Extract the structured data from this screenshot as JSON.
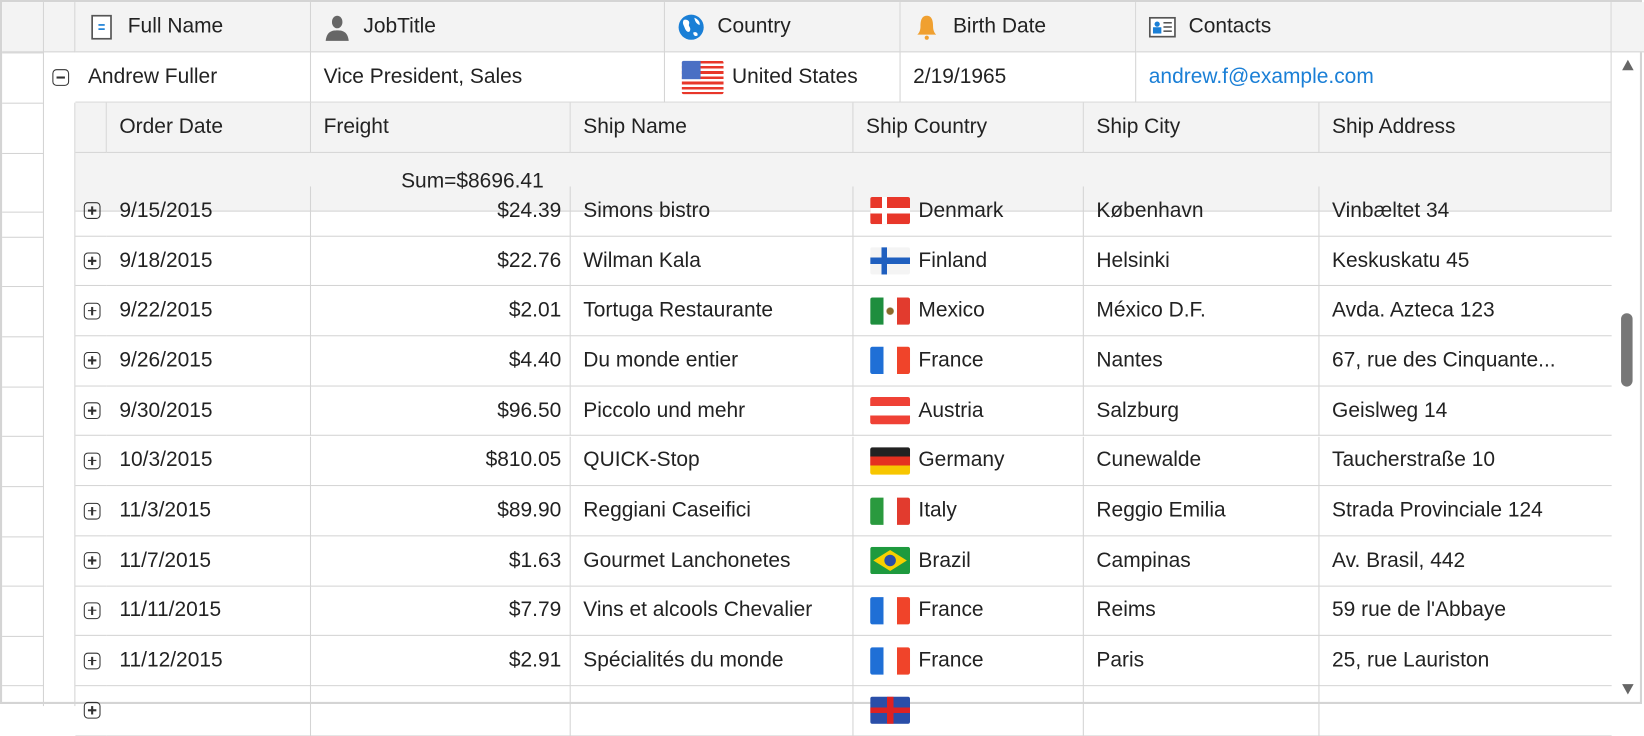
{
  "columns": [
    {
      "label": "Full Name",
      "icon": "full-name-icon"
    },
    {
      "label": "JobTitle",
      "icon": "person-icon"
    },
    {
      "label": "Country",
      "icon": "globe-icon"
    },
    {
      "label": "Birth Date",
      "icon": "bell-icon"
    },
    {
      "label": "Contacts",
      "icon": "contact-card-icon"
    }
  ],
  "master_row": {
    "full_name": "Andrew Fuller",
    "job_title": "Vice President, Sales",
    "country": "United States",
    "country_flag": "us",
    "birth_date": "2/19/1965",
    "contact": "andrew.f@example.com",
    "expanded": true
  },
  "detail": {
    "columns": [
      "Order Date",
      "Freight",
      "Ship Name",
      "Ship Country",
      "Ship City",
      "Ship Address"
    ],
    "summary": "Sum=$8696.41",
    "rows": [
      {
        "date": "9/15/2015",
        "freight": "$24.39",
        "ship_name": "Simons bistro",
        "country": "Denmark",
        "flag": "dk",
        "city": "København",
        "address": "Vinbæltet 34"
      },
      {
        "date": "9/18/2015",
        "freight": "$22.76",
        "ship_name": "Wilman Kala",
        "country": "Finland",
        "flag": "fi",
        "city": "Helsinki",
        "address": "Keskuskatu 45"
      },
      {
        "date": "9/22/2015",
        "freight": "$2.01",
        "ship_name": "Tortuga Restaurante",
        "country": "Mexico",
        "flag": "mx",
        "city": "México D.F.",
        "address": "Avda. Azteca 123"
      },
      {
        "date": "9/26/2015",
        "freight": "$4.40",
        "ship_name": "Du monde entier",
        "country": "France",
        "flag": "fr",
        "city": "Nantes",
        "address": "67, rue des Cinquante..."
      },
      {
        "date": "9/30/2015",
        "freight": "$96.50",
        "ship_name": "Piccolo und mehr",
        "country": "Austria",
        "flag": "at",
        "city": "Salzburg",
        "address": "Geislweg 14"
      },
      {
        "date": "10/3/2015",
        "freight": "$810.05",
        "ship_name": "QUICK-Stop",
        "country": "Germany",
        "flag": "de",
        "city": "Cunewalde",
        "address": "Taucherstraße 10"
      },
      {
        "date": "11/3/2015",
        "freight": "$89.90",
        "ship_name": "Reggiani Caseifici",
        "country": "Italy",
        "flag": "it",
        "city": "Reggio Emilia",
        "address": "Strada Provinciale 124"
      },
      {
        "date": "11/7/2015",
        "freight": "$1.63",
        "ship_name": "Gourmet Lanchonetes",
        "country": "Brazil",
        "flag": "br",
        "city": "Campinas",
        "address": "Av. Brasil, 442"
      },
      {
        "date": "11/11/2015",
        "freight": "$7.79",
        "ship_name": "Vins et alcools Chevalier",
        "country": "France",
        "flag": "fr",
        "city": "Reims",
        "address": "59 rue de l'Abbaye"
      },
      {
        "date": "11/12/2015",
        "freight": "$2.91",
        "ship_name": "Spécialités du monde",
        "country": "France",
        "flag": "fr",
        "city": "Paris",
        "address": "25, rue Lauriston"
      },
      {
        "date": "",
        "freight": "",
        "ship_name": "",
        "country": "",
        "flag": "gb",
        "city": "",
        "address": ""
      }
    ]
  },
  "scrollbar": {
    "position_percent": 45
  },
  "colors": {
    "header_bg": "#f3f3f3",
    "grid_line": "#d4d4d4",
    "link": "#1a7fd6"
  }
}
